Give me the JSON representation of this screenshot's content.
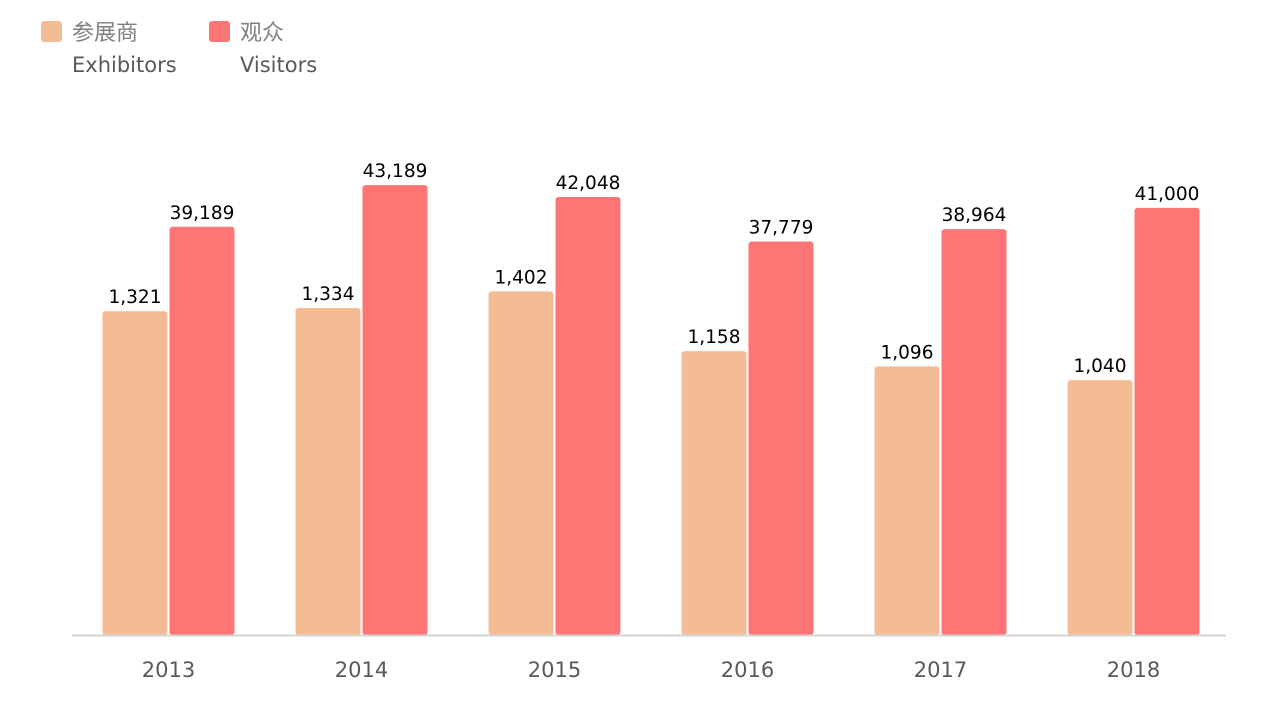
{
  "colors": {
    "exhibitors": "#F4BC94",
    "visitors": "#FF7576",
    "axis": "#D4D4D4"
  },
  "chart_data": {
    "type": "bar",
    "categories": [
      "2013",
      "2014",
      "2015",
      "2016",
      "2017",
      "2018"
    ],
    "series_scale": "independent",
    "legend_position": "top-left",
    "grid": false,
    "series": [
      {
        "key": "exhibitors",
        "name_cn": "参展商",
        "name_en": "Exhibitors",
        "values": [
          1321,
          1334,
          1402,
          1158,
          1096,
          1040
        ],
        "labels": [
          "1,321",
          "1,334",
          "1,402",
          "1,158",
          "1,096",
          "1,040"
        ],
        "ylim": [
          0,
          2040
        ]
      },
      {
        "key": "visitors",
        "name_cn": "观众",
        "name_en": "Visitors",
        "values": [
          39189,
          43189,
          42048,
          37779,
          38964,
          41000
        ],
        "labels": [
          "39,189",
          "43,189",
          "42,048",
          "37,779",
          "38,964",
          "41,000"
        ],
        "ylim": [
          0,
          48000
        ]
      }
    ]
  }
}
